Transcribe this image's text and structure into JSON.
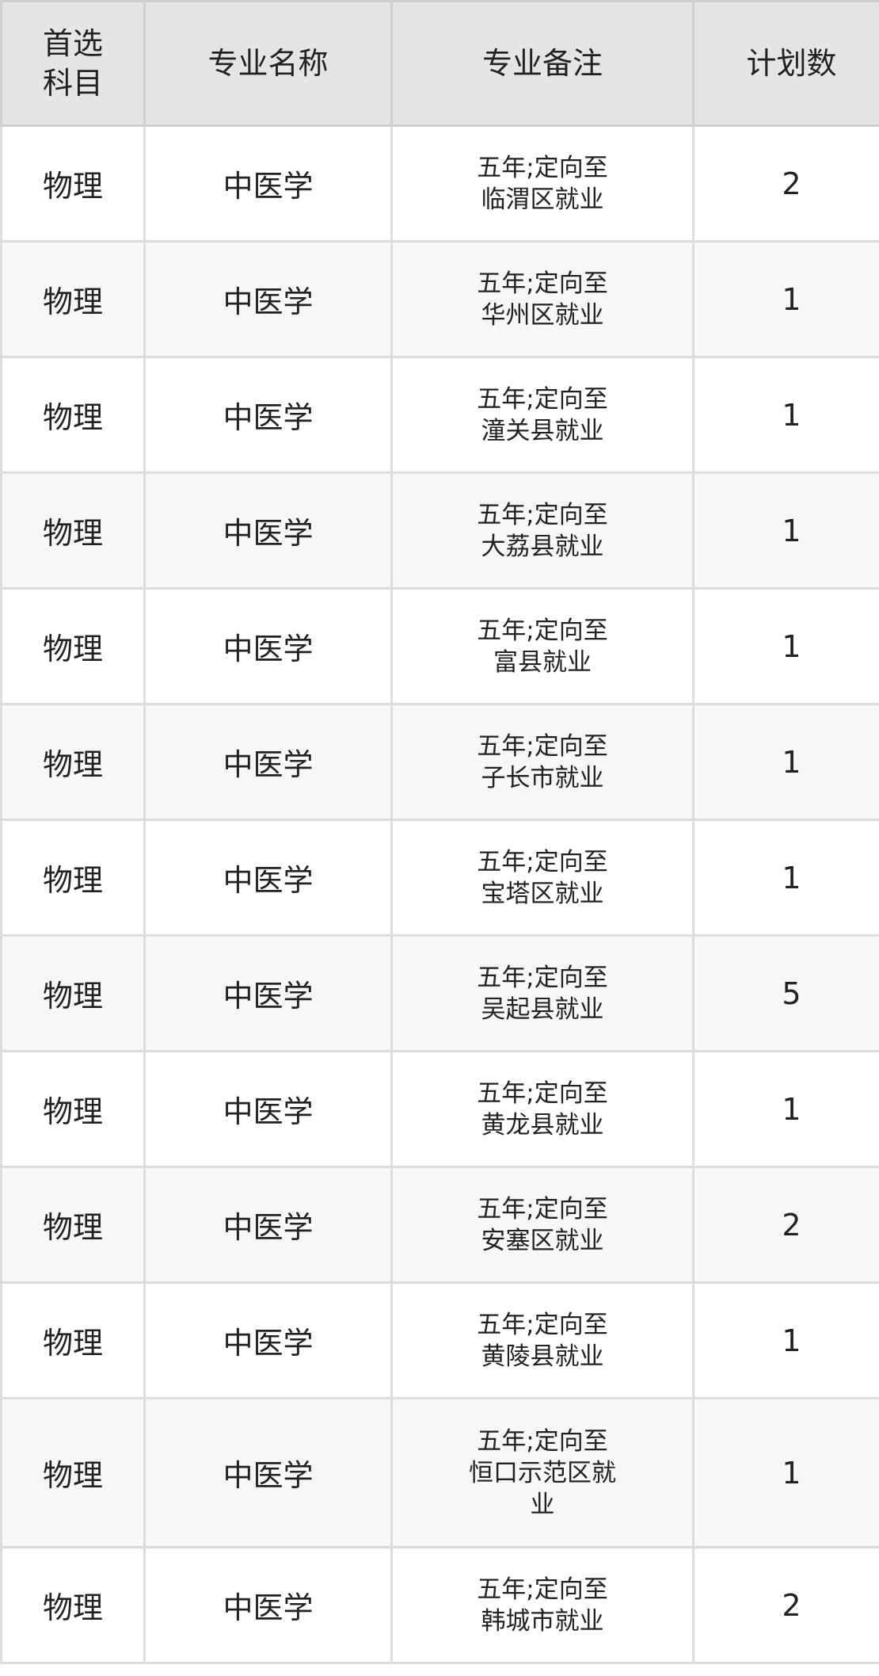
{
  "table": {
    "headers": [
      "首选\n科目",
      "专业名称",
      "专业备注",
      "计划数"
    ],
    "rows": [
      {
        "subject": "物理",
        "major": "中医学",
        "remark": "五年;定向至\n临渭区就业",
        "count": "2"
      },
      {
        "subject": "物理",
        "major": "中医学",
        "remark": "五年;定向至\n华州区就业",
        "count": "1"
      },
      {
        "subject": "物理",
        "major": "中医学",
        "remark": "五年;定向至\n潼关县就业",
        "count": "1"
      },
      {
        "subject": "物理",
        "major": "中医学",
        "remark": "五年;定向至\n大荔县就业",
        "count": "1"
      },
      {
        "subject": "物理",
        "major": "中医学",
        "remark": "五年;定向至\n富县就业",
        "count": "1"
      },
      {
        "subject": "物理",
        "major": "中医学",
        "remark": "五年;定向至\n子长市就业",
        "count": "1"
      },
      {
        "subject": "物理",
        "major": "中医学",
        "remark": "五年;定向至\n宝塔区就业",
        "count": "1"
      },
      {
        "subject": "物理",
        "major": "中医学",
        "remark": "五年;定向至\n吴起县就业",
        "count": "5"
      },
      {
        "subject": "物理",
        "major": "中医学",
        "remark": "五年;定向至\n黄龙县就业",
        "count": "1"
      },
      {
        "subject": "物理",
        "major": "中医学",
        "remark": "五年;定向至\n安塞区就业",
        "count": "2"
      },
      {
        "subject": "物理",
        "major": "中医学",
        "remark": "五年;定向至\n黄陵县就业",
        "count": "1"
      },
      {
        "subject": "物理",
        "major": "中医学",
        "remark": "五年;定向至\n恒口示范区就\n业",
        "count": "1"
      },
      {
        "subject": "物理",
        "major": "中医学",
        "remark": "五年;定向至\n韩城市就业",
        "count": "2"
      }
    ]
  },
  "colors": {
    "header_bg": "#e5e5e5",
    "alt_row_bg": "#f7f7f7",
    "border": "#dcdcdc",
    "text": "#222222"
  }
}
